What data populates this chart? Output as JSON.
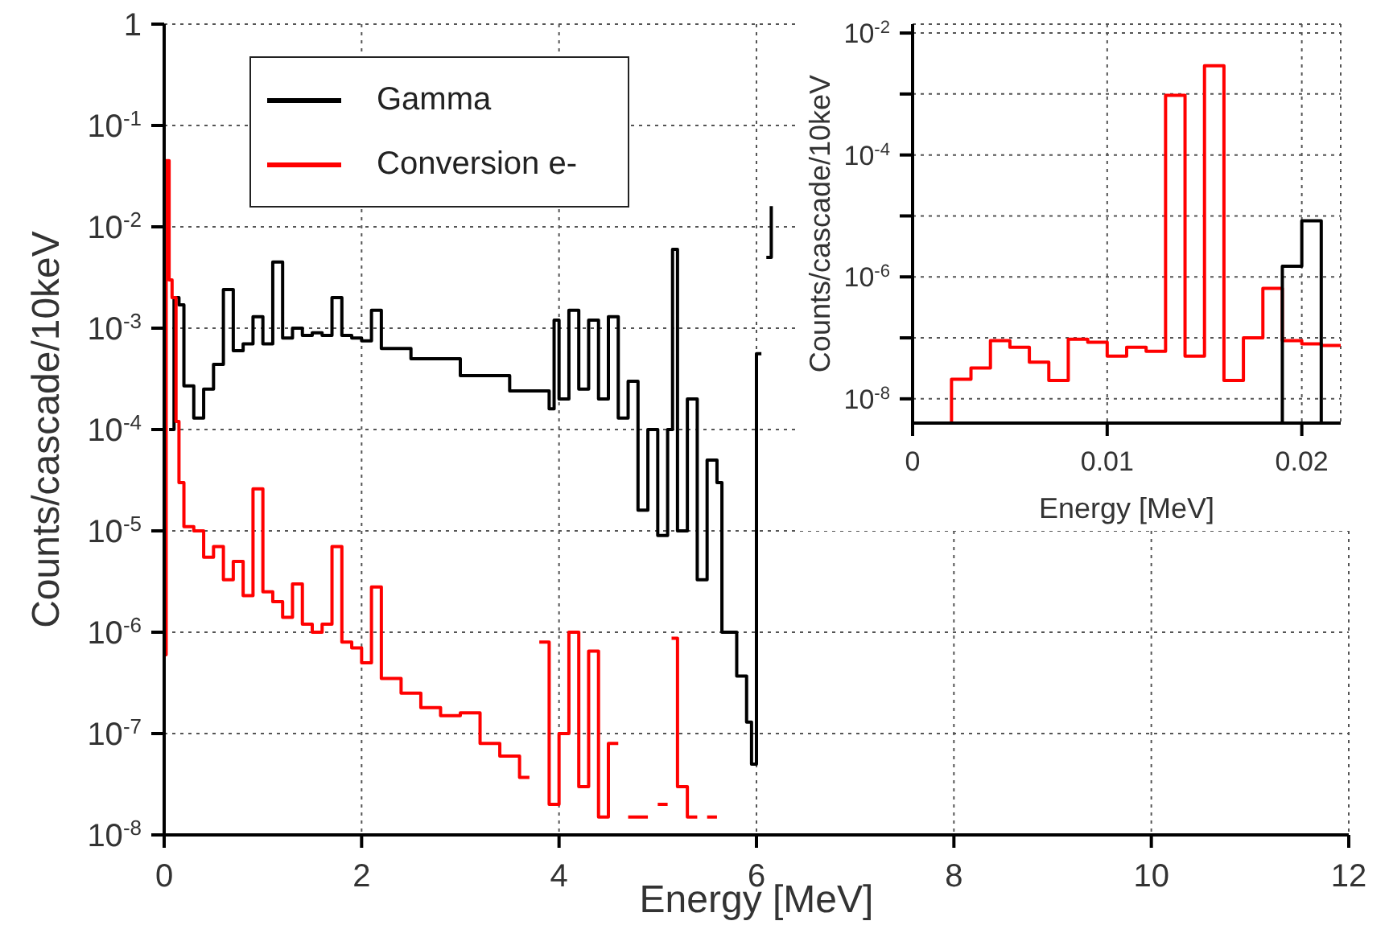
{
  "chart_data": [
    {
      "type": "step",
      "xlabel": "Energy [MeV]",
      "ylabel": "Counts/cascade/10keV",
      "xlim": [
        0,
        12
      ],
      "xticks": [
        0,
        2,
        4,
        6,
        8,
        10,
        12
      ],
      "ylim": [
        1e-08,
        1
      ],
      "yticks": [
        {
          "value": 1e-08,
          "label": "10$^{-8}$"
        },
        {
          "value": 1e-07,
          "label": "10$^{-7}$"
        },
        {
          "value": 1e-06,
          "label": "10$^{-6}$"
        },
        {
          "value": 1e-05,
          "label": "10$^{-5}$"
        },
        {
          "value": 0.0001,
          "label": "10$^{-4}$"
        },
        {
          "value": 0.001,
          "label": "10$^{-3}$"
        },
        {
          "value": 0.01,
          "label": "10$^{-2}$"
        },
        {
          "value": 0.1,
          "label": "10$^{-1}$"
        },
        1
      ],
      "log": "y",
      "grid": true,
      "legend": "top left",
      "series": [
        {
          "name": "Gamma",
          "color": "#000000",
          "x": [
            0.05,
            0.1,
            0.15,
            0.2,
            0.3,
            0.4,
            0.5,
            0.6,
            0.7,
            0.8,
            0.9,
            1.0,
            1.1,
            1.2,
            1.3,
            1.4,
            1.5,
            1.6,
            1.7,
            1.8,
            1.9,
            2.0,
            2.1,
            2.2,
            2.5,
            3.0,
            3.5,
            3.9,
            3.95,
            4.0,
            4.1,
            4.2,
            4.3,
            4.4,
            4.5,
            4.6,
            4.7,
            4.8,
            4.9,
            5.0,
            5.1,
            5.15,
            5.2,
            5.3,
            5.4,
            5.5,
            5.6,
            5.65,
            5.8,
            5.9,
            5.95,
            6.0,
            6.05,
            6.1,
            6.15
          ],
          "values": [
            0.0001,
            0.002,
            0.0017,
            0.00027,
            0.00013,
            0.00025,
            0.00044,
            0.0024,
            0.0006,
            0.0007,
            0.0013,
            0.0007,
            0.0045,
            0.0008,
            0.001,
            0.00085,
            0.0009,
            0.00085,
            0.002,
            0.00085,
            0.0008,
            0.00075,
            0.0015,
            0.00063,
            0.0005,
            0.00034,
            0.00024,
            0.00016,
            0.0012,
            0.0002,
            0.0015,
            0.00025,
            0.0012,
            0.0002,
            0.0013,
            0.00013,
            0.0003,
            1.6e-05,
            0.0001,
            9e-06,
            0.0001,
            0.006,
            1e-05,
            0.0002,
            3.3e-06,
            5e-05,
            3e-05,
            1e-06,
            3.7e-07,
            1.3e-07,
            5e-08,
            0.00056,
            null,
            0.005,
            0.016
          ]
        },
        {
          "name": "Conversion e-",
          "color": "#ff0000",
          "x": [
            0,
            0.02,
            0.05,
            0.08,
            0.12,
            0.15,
            0.2,
            0.3,
            0.4,
            0.5,
            0.6,
            0.7,
            0.8,
            0.9,
            1.0,
            1.1,
            1.2,
            1.3,
            1.4,
            1.5,
            1.6,
            1.7,
            1.8,
            1.9,
            2.0,
            2.1,
            2.2,
            2.4,
            2.6,
            2.8,
            3.0,
            3.2,
            3.4,
            3.6,
            3.7,
            3.8,
            3.9,
            4.0,
            4.1,
            4.2,
            4.3,
            4.4,
            4.5,
            4.6,
            4.7,
            4.9,
            5.0,
            5.1,
            5.14,
            5.2,
            5.3,
            5.4,
            5.5,
            5.6
          ],
          "values": [
            6e-07,
            0.045,
            0.003,
            0.002,
            0.00012,
            3e-05,
            1.1e-05,
            1e-05,
            5.5e-06,
            7e-06,
            3.3e-06,
            5e-06,
            2.3e-06,
            2.6e-05,
            2.5e-06,
            2e-06,
            1.4e-06,
            3e-06,
            1.2e-06,
            1e-06,
            1.2e-06,
            7e-06,
            8e-07,
            7e-07,
            5e-07,
            2.8e-06,
            3.5e-07,
            2.5e-07,
            1.8e-07,
            1.5e-07,
            1.6e-07,
            8e-08,
            6e-08,
            3.7e-08,
            null,
            8e-07,
            2e-08,
            1e-07,
            1e-06,
            3e-08,
            6.5e-07,
            1.5e-08,
            8e-08,
            null,
            1.5e-08,
            null,
            2e-08,
            null,
            8.7e-07,
            3e-08,
            1.5e-08,
            null,
            1.5e-08,
            1.5e-08
          ]
        }
      ]
    },
    {
      "type": "histogram",
      "xlabel": "Energy [MeV]",
      "ylabel": "Counts/cascade/10keV",
      "xlim": [
        0,
        0.022
      ],
      "xticks": [
        0,
        0.01,
        0.02
      ],
      "ylim": [
        4e-09,
        0.014
      ],
      "yticks": [
        {
          "value": 1e-08,
          "label": "10$^{-8}$"
        },
        {
          "value": 1e-07,
          "label": null
        },
        {
          "value": 1e-06,
          "label": "10$^{-6}$"
        },
        {
          "value": 1e-05,
          "label": null
        },
        {
          "value": 0.0001,
          "label": "10$^{-4}$"
        },
        {
          "value": 0.001,
          "label": null
        },
        {
          "value": 0.01,
          "label": "10$^{-2}$"
        }
      ],
      "log": "y",
      "grid": true,
      "bins": [
        0,
        0.001,
        0.002,
        0.003,
        0.004,
        0.005,
        0.006,
        0.007,
        0.008,
        0.009,
        0.01,
        0.011,
        0.012,
        0.013,
        0.014,
        0.015,
        0.016,
        0.017,
        0.018,
        0.019,
        0.02,
        0.021,
        0.022
      ],
      "series": [
        {
          "color": "#ff0000",
          "values": [
            null,
            null,
            2.1e-08,
            3.2e-08,
            9e-08,
            7e-08,
            4e-08,
            2e-08,
            9.5e-08,
            8.5e-08,
            5e-08,
            7e-08,
            6e-08,
            0.00095,
            5e-08,
            0.0029,
            2e-08,
            1e-07,
            6.5e-07,
            9e-08,
            8e-08,
            7.5e-08
          ]
        },
        {
          "color": "#000000",
          "values": [
            null,
            null,
            null,
            null,
            null,
            null,
            null,
            null,
            null,
            null,
            null,
            null,
            null,
            null,
            null,
            null,
            null,
            null,
            null,
            1.5e-06,
            8.3e-06,
            null
          ]
        }
      ]
    }
  ]
}
